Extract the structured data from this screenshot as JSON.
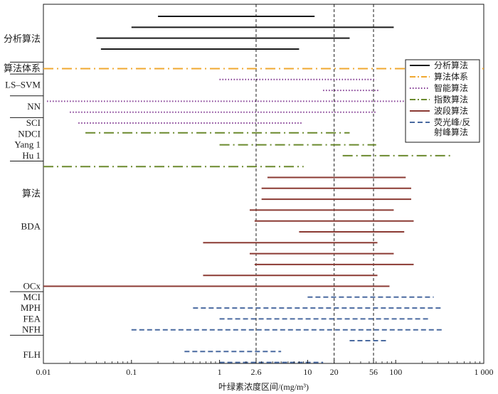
{
  "chart_data": {
    "type": "range",
    "x_scale": "log",
    "x_range": [
      0.01,
      1000
    ],
    "xlabel": "叶绿素浓度区间/(mg/m³)",
    "ylabel": "",
    "grid": false,
    "legend_position": "top-right",
    "x_ticks": [
      {
        "value": 0.01,
        "label": "0.01"
      },
      {
        "value": 0.1,
        "label": "0.1"
      },
      {
        "value": 1,
        "label": "1"
      },
      {
        "value": 2.6,
        "label": "2.6"
      },
      {
        "value": 10,
        "label": "10"
      },
      {
        "value": 20,
        "label": "20"
      },
      {
        "value": 56,
        "label": "56"
      },
      {
        "value": 100,
        "label": "100"
      },
      {
        "value": 1000,
        "label": "1 000"
      }
    ],
    "reference_lines": [
      2.6,
      20,
      56
    ],
    "category_labels": [
      {
        "text": "分析算法",
        "row": 2.3
      },
      {
        "text": "算法体系",
        "row": 5
      },
      {
        "text": "LS–SVM",
        "row": 6.5
      },
      {
        "text": "NN",
        "row": 8.5
      },
      {
        "text": "SCI",
        "row": 10
      },
      {
        "text": "NDCI",
        "row": 11
      },
      {
        "text": "Yang 1",
        "row": 12
      },
      {
        "text": "Hu 1",
        "row": 13
      },
      {
        "text": "算法",
        "row": 16.5
      },
      {
        "text": "BDA",
        "row": 19.5
      },
      {
        "text": "OCx",
        "row": 25
      },
      {
        "text": "MCI",
        "row": 26
      },
      {
        "text": "MPH",
        "row": 27
      },
      {
        "text": "FEA",
        "row": 28
      },
      {
        "text": "NFH",
        "row": 29
      },
      {
        "text": "FLH",
        "row": 31.3
      }
    ],
    "group_separators": [
      4.4,
      5.5,
      7.5,
      9.5,
      13.5,
      25.5,
      29.5
    ],
    "series": [
      {
        "name": "分析算法",
        "color": "#1a1a1a",
        "style": "solid",
        "ranges": [
          {
            "row": 0.2,
            "min": 0.2,
            "max": 12
          },
          {
            "row": 1.2,
            "min": 0.1,
            "max": 95
          },
          {
            "row": 2.2,
            "min": 0.04,
            "max": 30
          },
          {
            "row": 3.2,
            "min": 0.045,
            "max": 8
          }
        ]
      },
      {
        "name": "算法体系",
        "color": "#f0a830",
        "style": "dashdot",
        "ranges": [
          {
            "row": 5,
            "min": 0.01,
            "max": 1000
          }
        ]
      },
      {
        "name": "智能算法",
        "color": "#7a2e8c",
        "style": "dotted",
        "ranges": [
          {
            "row": 6,
            "min": 1,
            "max": 60
          },
          {
            "row": 7,
            "min": 15,
            "max": 65
          },
          {
            "row": 8,
            "min": 0.011,
            "max": 180
          },
          {
            "row": 9,
            "min": 0.02,
            "max": 60
          },
          {
            "row": 10,
            "min": 0.025,
            "max": 8.5
          }
        ]
      },
      {
        "name": "指数算法",
        "color": "#6b8a2e",
        "style": "dashdot",
        "ranges": [
          {
            "row": 10.9,
            "min": 0.03,
            "max": 30
          },
          {
            "row": 12,
            "min": 1,
            "max": 60
          },
          {
            "row": 13,
            "min": 25,
            "max": 450
          },
          {
            "row": 14,
            "min": 0.01,
            "max": 9
          }
        ]
      },
      {
        "name": "波段算法",
        "color": "#8b3a33",
        "style": "solid",
        "ranges": [
          {
            "row": 15,
            "min": 3.5,
            "max": 130
          },
          {
            "row": 16,
            "min": 3,
            "max": 150
          },
          {
            "row": 17,
            "min": 3,
            "max": 150
          },
          {
            "row": 18,
            "min": 2.2,
            "max": 95
          },
          {
            "row": 19,
            "min": 2.5,
            "max": 160
          },
          {
            "row": 20,
            "min": 8,
            "max": 125
          },
          {
            "row": 21,
            "min": 0.65,
            "max": 62
          },
          {
            "row": 22,
            "min": 2.2,
            "max": 95
          },
          {
            "row": 23,
            "min": 2.5,
            "max": 160
          },
          {
            "row": 24,
            "min": 0.65,
            "max": 62
          },
          {
            "row": 25,
            "min": 0.01,
            "max": 85
          }
        ]
      },
      {
        "name": "荧光峰/反射峰算法",
        "color": "#4a6aa0",
        "style": "dashed",
        "ranges": [
          {
            "row": 26,
            "min": 10,
            "max": 270
          },
          {
            "row": 27,
            "min": 0.5,
            "max": 330
          },
          {
            "row": 28,
            "min": 1,
            "max": 240
          },
          {
            "row": 29,
            "min": 0.1,
            "max": 340
          },
          {
            "row": 30,
            "min": 30,
            "max": 80
          },
          {
            "row": 31,
            "min": 0.4,
            "max": 5
          },
          {
            "row": 32,
            "min": 1,
            "max": 15
          }
        ]
      }
    ],
    "legend": [
      {
        "text": "分析算法",
        "color": "#1a1a1a",
        "style": "solid"
      },
      {
        "text": "算法体系",
        "color": "#f0a830",
        "style": "dashdot"
      },
      {
        "text": "智能算法",
        "color": "#7a2e8c",
        "style": "dotted"
      },
      {
        "text": "指数算法",
        "color": "#6b8a2e",
        "style": "dashdot"
      },
      {
        "text": "波段算法",
        "color": "#8b3a33",
        "style": "solid"
      },
      {
        "text": "荧光峰/反",
        "text2": "射峰算法",
        "color": "#4a6aa0",
        "style": "dashed"
      }
    ]
  }
}
